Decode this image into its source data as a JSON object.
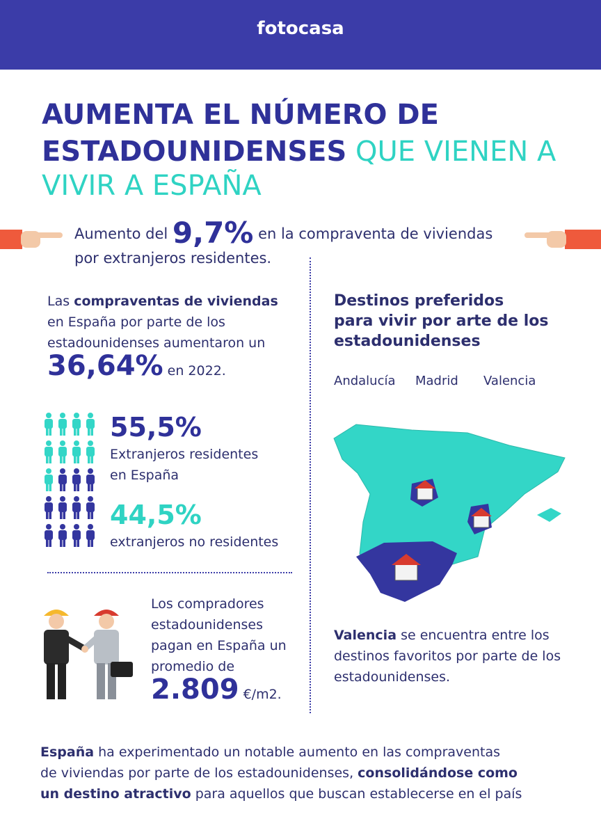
{
  "header": {
    "logo": "fotocasa"
  },
  "title": {
    "line1": "AUMENTA EL NÚMERO DE",
    "line2_bold": "ESTADOUNIDENSES",
    "line2_rest": "QUE VIENEN A",
    "line3": "VIVIR A ESPAÑA"
  },
  "highlight": {
    "prefix": "Aumento del",
    "value": "9,7%",
    "suffix": "en la compraventa de viviendas",
    "line2": "por extranjeros residentes."
  },
  "sales": {
    "intro": "Las",
    "bold": "compraventas de viviendas",
    "line2": "en España por parte de los",
    "line3": "estadounidenses aumentaron un",
    "value": "36,64%",
    "suffix": "en 2022."
  },
  "residents": {
    "value": "55,5%",
    "label1": "Extranjeros residentes",
    "label2": "en España"
  },
  "non_residents": {
    "value": "44,5%",
    "label": "extranjeros no residentes"
  },
  "price": {
    "line1": "Los compradores",
    "line2": "estadounidenses",
    "line3": "pagan en España un",
    "line4": "promedio de",
    "value": "2.809",
    "unit": "€/m2."
  },
  "destinations": {
    "title1": "Destinos preferidos",
    "title2": "para vivir por arte de los",
    "title3": "estadounidenses",
    "labels": [
      "Andalucía",
      "Madrid",
      "Valencia"
    ]
  },
  "valencia_note": {
    "bold": "Valencia",
    "line1": "se encuentra entre los",
    "line2": "destinos favoritos por parte de los",
    "line3": "estadounidenses."
  },
  "footer": {
    "bold1": "España",
    "text1": "ha experimentado un notable aumento en las compraventas",
    "text2": "de viviendas por parte de los estadounidenses,",
    "bold2": "consolidándose como",
    "bold3": "un destino atractivo",
    "text3": "para aquellos que buscan establecerse en el país"
  }
}
